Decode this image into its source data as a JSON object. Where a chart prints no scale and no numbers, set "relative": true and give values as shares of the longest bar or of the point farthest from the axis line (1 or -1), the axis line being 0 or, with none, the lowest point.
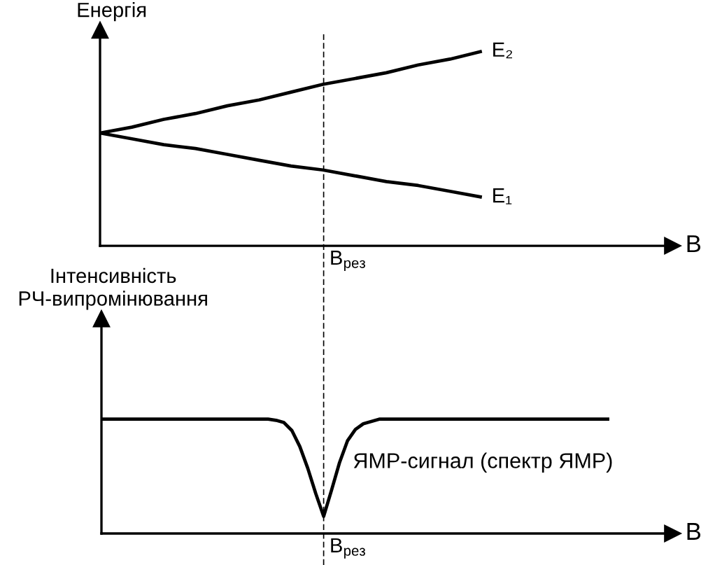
{
  "chart_data": [
    {
      "type": "line",
      "ylabel": "Енергія",
      "xlabel": "B",
      "relative": true,
      "line_style": "solid",
      "categories": [
        null,
        null,
        null,
        null,
        null,
        null,
        null,
        null,
        null,
        null,
        null,
        null,
        null,
        null,
        null,
        null,
        null,
        null,
        null
      ],
      "series": [
        {
          "name": "E₂",
          "color": "#000000",
          "values": [
            0.58,
            0.61,
            0.65,
            0.68,
            0.72,
            0.75,
            0.79,
            0.83,
            0.86,
            0.89,
            0.93,
            0.96,
            1.0,
            null,
            null,
            null,
            null,
            null,
            null
          ]
        },
        {
          "name": "E₁",
          "color": "#000000",
          "values": [
            0.58,
            0.55,
            0.52,
            0.5,
            0.47,
            0.44,
            0.41,
            0.39,
            0.36,
            0.33,
            0.31,
            0.28,
            0.25,
            null,
            null,
            null,
            null,
            null,
            null
          ]
        }
      ],
      "annotations": [
        "B$_{рез}$"
      ]
    },
    {
      "type": "line",
      "ylabel": "Інтенсивність\nРЧ-випромінювання",
      "xlabel": "B",
      "relative": true,
      "line_style": "solid",
      "categories": [
        null,
        null,
        null,
        null,
        null,
        null,
        null,
        null,
        null,
        null,
        null,
        null,
        null,
        null,
        null,
        null,
        null,
        null,
        null,
        null,
        null,
        null,
        null,
        null,
        null,
        null,
        null,
        null,
        null,
        null,
        null,
        null,
        null,
        null,
        null,
        null,
        null,
        null,
        null,
        null,
        null,
        null,
        null,
        null,
        null,
        null,
        null,
        null,
        null,
        null,
        null,
        null,
        null,
        null,
        null,
        null,
        null,
        null,
        null,
        null,
        null,
        null,
        null,
        null,
        null,
        null,
        null,
        null,
        null,
        null,
        null,
        null,
        null
      ],
      "series": [
        {
          "color": "#000000",
          "values": [
            1.0,
            1.0,
            1.0,
            1.0,
            1.0,
            1.0,
            1.0,
            1.0,
            1.0,
            1.0,
            1.0,
            1.0,
            1.0,
            1.0,
            1.0,
            1.0,
            1.0,
            1.0,
            1.0,
            1.0,
            1.0,
            1.0,
            0.99,
            0.97,
            0.9,
            0.76,
            0.57,
            0.35,
            0.15,
            0.38,
            0.62,
            0.81,
            0.91,
            0.96,
            0.98,
            1.0,
            1.0,
            1.0,
            1.0,
            1.0,
            1.0,
            1.0,
            1.0,
            1.0,
            1.0,
            1.0,
            1.0,
            1.0,
            1.0,
            1.0,
            1.0,
            1.0,
            1.0,
            1.0,
            1.0,
            1.0,
            1.0,
            1.0,
            1.0,
            1.0,
            1.0,
            1.0,
            1.0,
            1.0,
            1.0,
            null,
            null,
            null,
            null,
            null,
            null,
            null,
            null
          ]
        }
      ],
      "annotations": [
        "ЯМР-сигнал (спектр ЯМР)",
        "B$_{рез}$"
      ]
    }
  ]
}
